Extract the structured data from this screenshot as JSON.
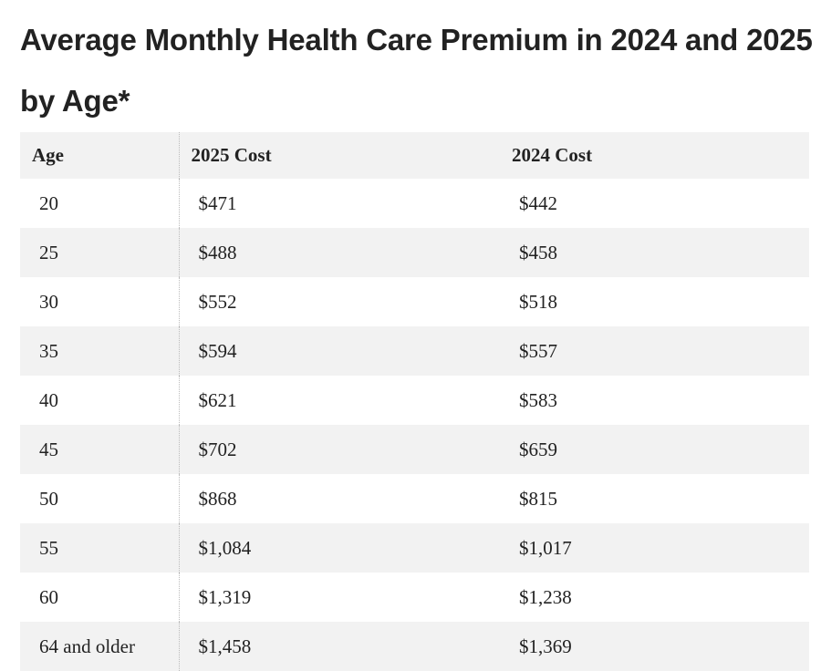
{
  "header": {
    "title": "Average Monthly Health Care Premium in 2024 and 2025 by Age*"
  },
  "table": {
    "columns": [
      "Age",
      "2025 Cost",
      "2024 Cost"
    ],
    "rows": [
      [
        "20",
        "$471",
        "$442"
      ],
      [
        "25",
        "$488",
        "$458"
      ],
      [
        "30",
        "$552",
        "$518"
      ],
      [
        "35",
        "$594",
        "$557"
      ],
      [
        "40",
        "$621",
        "$583"
      ],
      [
        "45",
        "$702",
        "$659"
      ],
      [
        "50",
        "$868",
        "$815"
      ],
      [
        "55",
        "$1,084",
        "$1,017"
      ],
      [
        "60",
        "$1,319",
        "$1,238"
      ],
      [
        "64 and older",
        "$1,458",
        "$1,369"
      ]
    ]
  }
}
